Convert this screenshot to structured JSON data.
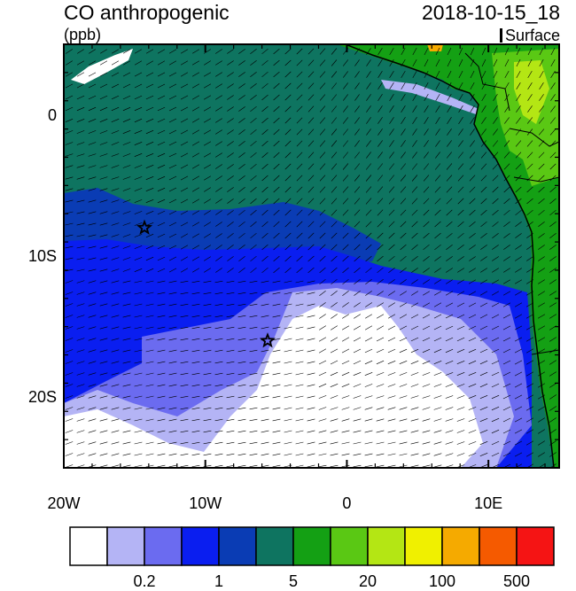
{
  "header": {
    "title": "CO anthropogenic",
    "units": "(ppb)",
    "datetime": "2018-10-15_18",
    "level": "Surface"
  },
  "axes": {
    "y_ticks": [
      {
        "value": 0,
        "label": "0"
      },
      {
        "value": -10,
        "label": "10S"
      },
      {
        "value": -20,
        "label": "20S"
      }
    ],
    "x_ticks": [
      {
        "value": -20,
        "label": "20W"
      },
      {
        "value": -10,
        "label": "10W"
      },
      {
        "value": 0,
        "label": "0"
      },
      {
        "value": 10,
        "label": "10E"
      }
    ],
    "lon_range": [
      -20,
      15
    ],
    "lat_range": [
      -25,
      5
    ]
  },
  "colorbar": {
    "colors": [
      "#ffffff",
      "#b4b4f5",
      "#6b6bf0",
      "#0a1ef0",
      "#0a3cb4",
      "#0e7460",
      "#14a014",
      "#5ac814",
      "#b4e614",
      "#f0f000",
      "#f5aa00",
      "#f55a00",
      "#f51414"
    ],
    "labels": [
      {
        "after": 1,
        "text": "0.2"
      },
      {
        "after": 3,
        "text": "1"
      },
      {
        "after": 5,
        "text": "5"
      },
      {
        "after": 7,
        "text": "20"
      },
      {
        "after": 9,
        "text": "100"
      },
      {
        "after": 11,
        "text": "500"
      }
    ]
  },
  "markers": [
    {
      "name": "star-marker-west",
      "lon": -14.3,
      "lat": -8.0
    },
    {
      "name": "star-marker-south",
      "lon": -5.6,
      "lat": -16.0
    }
  ]
}
